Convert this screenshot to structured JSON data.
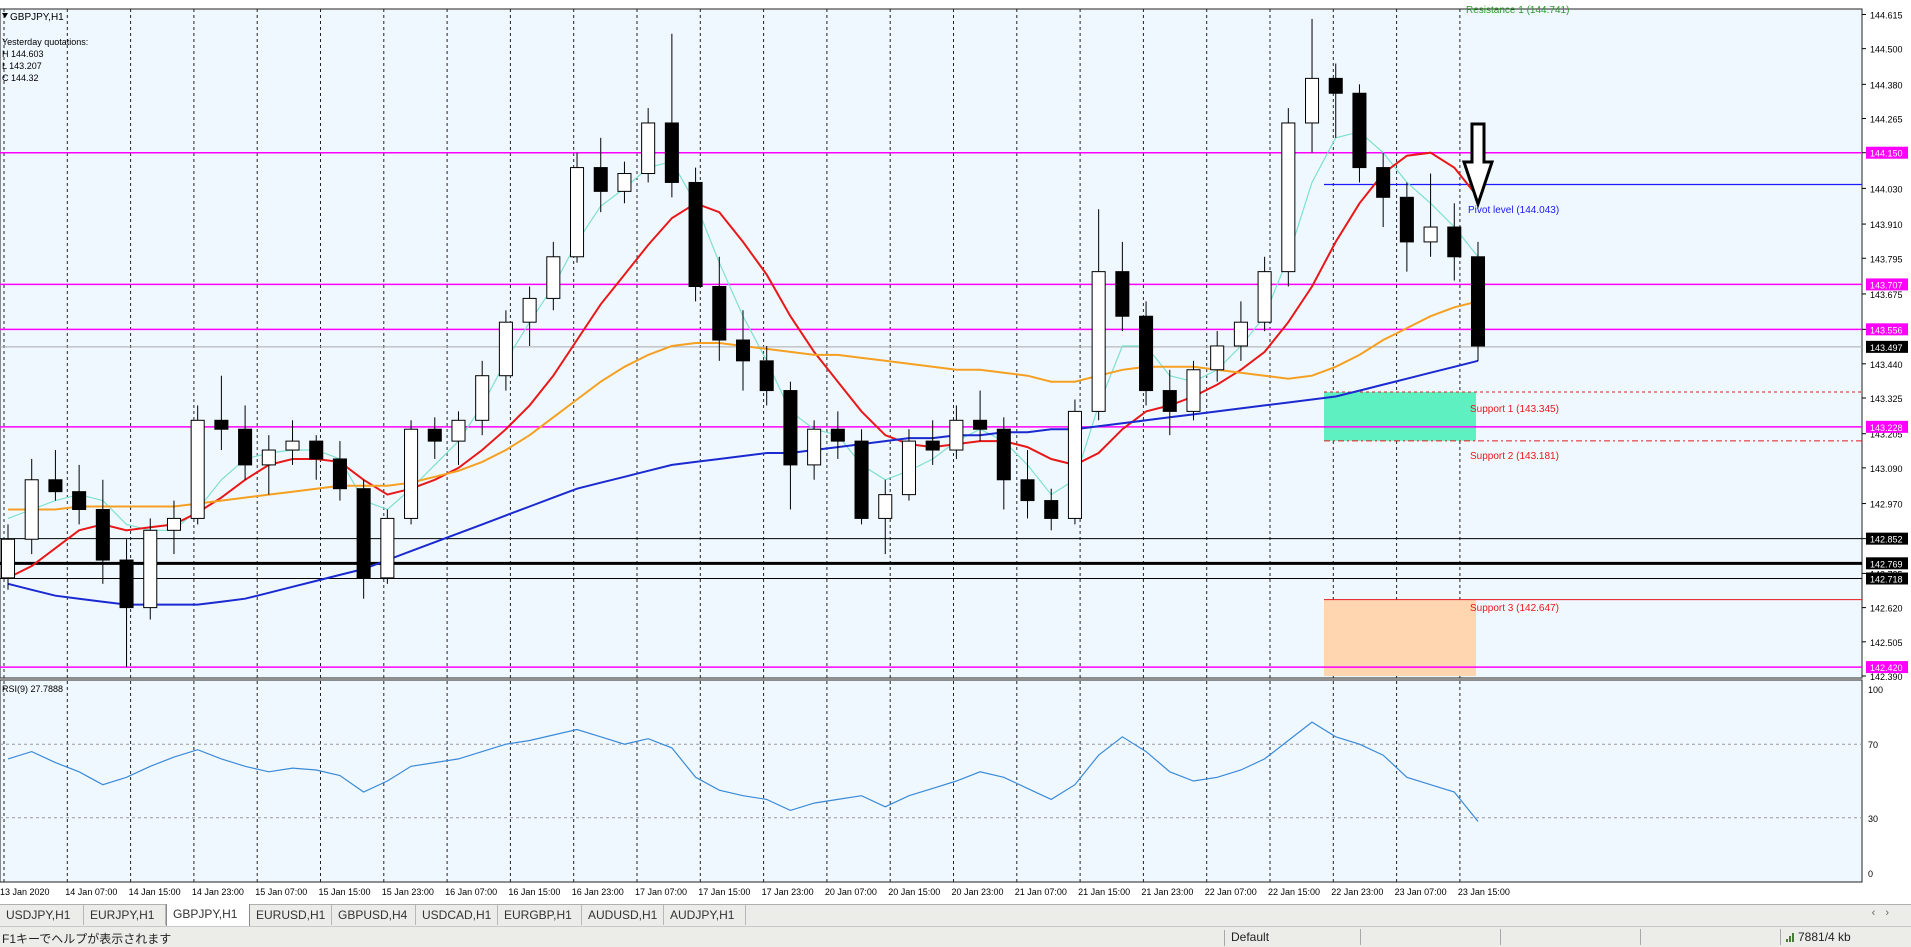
{
  "window": {
    "symbol_title": "GBPJPY,H1",
    "yesterday_label": "Yesterday quotations:",
    "yesterday_high": "H 144.603",
    "yesterday_low": "L 143.207",
    "yesterday_close": "C 144.32"
  },
  "price_scale": {
    "ticks": [
      "144.615",
      "144.500",
      "144.380",
      "144.265",
      "144.150",
      "144.030",
      "143.910",
      "143.795",
      "143.675",
      "143.556",
      "143.440",
      "143.325",
      "143.205",
      "143.090",
      "142.970",
      "142.852",
      "142.735",
      "142.620",
      "142.505",
      "142.390"
    ]
  },
  "price_badges": [
    {
      "text": "144.150",
      "price": 144.15,
      "kind": "magenta"
    },
    {
      "text": "143.707",
      "price": 143.707,
      "kind": "magenta"
    },
    {
      "text": "143.556",
      "price": 143.556,
      "kind": "magenta"
    },
    {
      "text": "143.497",
      "price": 143.497,
      "kind": "black"
    },
    {
      "text": "143.228",
      "price": 143.228,
      "kind": "magenta"
    },
    {
      "text": "142.852",
      "price": 142.852,
      "kind": "black"
    },
    {
      "text": "142.769",
      "price": 142.769,
      "kind": "black"
    },
    {
      "text": "142.718",
      "price": 142.718,
      "kind": "black"
    },
    {
      "text": "142.420",
      "price": 142.42,
      "kind": "magenta"
    }
  ],
  "levels": {
    "resistance1": "Resistance 1 (144.741)",
    "pivot": "Pivot level (144.043)",
    "support1": "Support 1 (143.345)",
    "support2": "Support 2 (143.181)",
    "support3": "Support 3 (142.647)"
  },
  "rsi": {
    "label": "RSI(9) 27.7888",
    "ticks": [
      "100",
      "70",
      "30",
      "0"
    ]
  },
  "time_axis": {
    "labels": [
      "13 Jan 2020",
      "14 Jan 07:00",
      "14 Jan 15:00",
      "14 Jan 23:00",
      "15 Jan 07:00",
      "15 Jan 15:00",
      "15 Jan 23:00",
      "16 Jan 07:00",
      "16 Jan 15:00",
      "16 Jan 23:00",
      "17 Jan 07:00",
      "17 Jan 15:00",
      "17 Jan 23:00",
      "20 Jan 07:00",
      "20 Jan 15:00",
      "20 Jan 23:00",
      "21 Jan 07:00",
      "21 Jan 15:00",
      "21 Jan 23:00",
      "22 Jan 07:00",
      "22 Jan 15:00",
      "22 Jan 23:00",
      "23 Jan 07:00",
      "23 Jan 15:00"
    ]
  },
  "tabs": [
    "USDJPY,H1",
    "EURJPY,H1",
    "GBPJPY,H1",
    "EURUSD,H1",
    "GBPUSD,H4",
    "USDCAD,H1",
    "EURGBP,H1",
    "AUDUSD,H1",
    "AUDJPY,H1"
  ],
  "active_tab": "GBPJPY,H1",
  "status": {
    "help": "F1キーでヘルプが表示されます",
    "profile": "Default",
    "traffic": "7881/4 kb"
  },
  "colors": {
    "background": "#f0f8ff",
    "magenta_line": "#ff00ff",
    "pivot": "#1a1aff",
    "ma_fast": "#7ee0d0",
    "ma_mid": "#e81818",
    "ma_slow": "#f5a020",
    "ma_long": "#1a2ad0",
    "support_zone": "#5ef0c0",
    "support3_zone": "#ffd6b0",
    "rsi_line": "#3a8ad8"
  },
  "chart_data": {
    "type": "candlestick",
    "symbol": "GBPJPY",
    "timeframe": "H1",
    "ylim": [
      142.39,
      144.63
    ],
    "candles": [
      [
        142.72,
        142.9,
        142.68,
        142.85
      ],
      [
        142.85,
        143.12,
        142.8,
        143.05
      ],
      [
        143.05,
        143.15,
        142.98,
        143.01
      ],
      [
        143.01,
        143.1,
        142.9,
        142.95
      ],
      [
        142.95,
        143.05,
        142.7,
        142.78
      ],
      [
        142.78,
        142.85,
        142.42,
        142.62
      ],
      [
        142.62,
        142.92,
        142.58,
        142.88
      ],
      [
        142.88,
        142.98,
        142.8,
        142.92
      ],
      [
        142.92,
        143.3,
        142.9,
        143.25
      ],
      [
        143.25,
        143.4,
        143.15,
        143.22
      ],
      [
        143.22,
        143.3,
        143.05,
        143.1
      ],
      [
        143.1,
        143.2,
        143.0,
        143.15
      ],
      [
        143.15,
        143.25,
        143.1,
        143.18
      ],
      [
        143.18,
        143.2,
        143.05,
        143.12
      ],
      [
        143.12,
        143.18,
        142.98,
        143.02
      ],
      [
        143.02,
        143.05,
        142.65,
        142.72
      ],
      [
        142.72,
        142.95,
        142.7,
        142.92
      ],
      [
        142.92,
        143.25,
        142.9,
        143.22
      ],
      [
        143.22,
        143.26,
        143.12,
        143.18
      ],
      [
        143.18,
        143.28,
        143.1,
        143.25
      ],
      [
        143.25,
        143.45,
        143.2,
        143.4
      ],
      [
        143.4,
        143.62,
        143.35,
        143.58
      ],
      [
        143.58,
        143.7,
        143.5,
        143.66
      ],
      [
        143.66,
        143.85,
        143.62,
        143.8
      ],
      [
        143.8,
        144.15,
        143.78,
        144.1
      ],
      [
        144.1,
        144.2,
        143.95,
        144.02
      ],
      [
        144.02,
        144.12,
        143.98,
        144.08
      ],
      [
        144.08,
        144.3,
        144.05,
        144.25
      ],
      [
        144.25,
        144.55,
        144.0,
        144.05
      ],
      [
        144.05,
        144.1,
        143.65,
        143.7
      ],
      [
        143.7,
        143.8,
        143.45,
        143.52
      ],
      [
        143.52,
        143.62,
        143.35,
        143.45
      ],
      [
        143.45,
        143.5,
        143.3,
        143.35
      ],
      [
        143.35,
        143.38,
        142.95,
        143.1
      ],
      [
        143.1,
        143.25,
        143.05,
        143.22
      ],
      [
        143.22,
        143.28,
        143.12,
        143.18
      ],
      [
        143.18,
        143.22,
        142.9,
        142.92
      ],
      [
        142.92,
        143.05,
        142.8,
        143.0
      ],
      [
        143.0,
        143.22,
        142.98,
        143.18
      ],
      [
        143.18,
        143.25,
        143.1,
        143.15
      ],
      [
        143.15,
        143.3,
        143.12,
        143.25
      ],
      [
        143.25,
        143.35,
        143.18,
        143.22
      ],
      [
        143.22,
        143.26,
        142.95,
        143.05
      ],
      [
        143.05,
        143.15,
        142.92,
        142.98
      ],
      [
        142.98,
        143.02,
        142.88,
        142.92
      ],
      [
        142.92,
        143.32,
        142.9,
        143.28
      ],
      [
        143.28,
        143.96,
        143.25,
        143.75
      ],
      [
        143.75,
        143.85,
        143.55,
        143.6
      ],
      [
        143.6,
        143.65,
        143.3,
        143.35
      ],
      [
        143.35,
        143.42,
        143.2,
        143.28
      ],
      [
        143.28,
        143.45,
        143.25,
        143.42
      ],
      [
        143.42,
        143.55,
        143.38,
        143.5
      ],
      [
        143.5,
        143.65,
        143.45,
        143.58
      ],
      [
        143.58,
        143.8,
        143.55,
        143.75
      ],
      [
        143.75,
        144.3,
        143.7,
        144.25
      ],
      [
        144.25,
        144.6,
        144.15,
        144.4
      ],
      [
        144.4,
        144.45,
        144.2,
        144.35
      ],
      [
        144.35,
        144.38,
        144.05,
        144.1
      ],
      [
        144.1,
        144.15,
        143.9,
        144.0
      ],
      [
        144.0,
        144.05,
        143.75,
        143.85
      ],
      [
        143.85,
        144.08,
        143.8,
        143.9
      ],
      [
        143.9,
        143.98,
        143.72,
        143.8
      ],
      [
        143.8,
        143.85,
        143.45,
        143.5
      ]
    ],
    "series": [
      {
        "name": "",
        "color": "#7ee0d0",
        "values": [
          142.92,
          142.95,
          142.98,
          143.0,
          142.98,
          142.9,
          142.88,
          142.88,
          142.95,
          143.05,
          143.12,
          143.14,
          143.15,
          143.15,
          143.12,
          142.98,
          142.95,
          143.02,
          143.1,
          143.18,
          143.3,
          143.45,
          143.58,
          143.7,
          143.85,
          143.97,
          144.03,
          144.1,
          144.12,
          143.98,
          143.78,
          143.6,
          143.45,
          143.28,
          143.22,
          143.2,
          143.1,
          143.05,
          143.08,
          143.12,
          143.18,
          143.22,
          143.18,
          143.1,
          143.0,
          143.05,
          143.3,
          143.5,
          143.5,
          143.4,
          143.38,
          143.42,
          143.5,
          143.6,
          143.8,
          144.05,
          144.2,
          144.22,
          144.15,
          144.05,
          143.98,
          143.9,
          143.8
        ]
      },
      {
        "name": "",
        "color": "#e81818",
        "values": [
          142.72,
          142.76,
          142.82,
          142.88,
          142.9,
          142.88,
          142.89,
          142.9,
          142.94,
          142.99,
          143.05,
          143.1,
          143.12,
          143.12,
          143.11,
          143.05,
          143.0,
          143.02,
          143.05,
          143.09,
          143.15,
          143.22,
          143.3,
          143.4,
          143.52,
          143.64,
          143.74,
          143.84,
          143.93,
          143.98,
          143.95,
          143.85,
          143.74,
          143.6,
          143.48,
          143.38,
          143.28,
          143.2,
          143.17,
          143.16,
          143.17,
          143.18,
          143.18,
          143.16,
          143.12,
          143.1,
          143.14,
          143.22,
          143.28,
          143.3,
          143.33,
          143.37,
          143.42,
          143.48,
          143.58,
          143.7,
          143.85,
          143.98,
          144.08,
          144.14,
          144.15,
          144.1,
          144.0
        ]
      },
      {
        "name": "",
        "color": "#f5a020",
        "values": [
          142.95,
          142.95,
          142.95,
          142.96,
          142.96,
          142.96,
          142.96,
          142.96,
          142.97,
          142.98,
          142.99,
          143.0,
          143.01,
          143.02,
          143.03,
          143.03,
          143.03,
          143.04,
          143.06,
          143.08,
          143.11,
          143.15,
          143.2,
          143.26,
          143.32,
          143.38,
          143.43,
          143.47,
          143.5,
          143.51,
          143.51,
          143.5,
          143.49,
          143.48,
          143.47,
          143.47,
          143.46,
          143.45,
          143.44,
          143.43,
          143.42,
          143.42,
          143.41,
          143.4,
          143.38,
          143.38,
          143.4,
          143.42,
          143.43,
          143.43,
          143.43,
          143.42,
          143.41,
          143.4,
          143.39,
          143.4,
          143.43,
          143.47,
          143.52,
          143.56,
          143.6,
          143.63,
          143.65
        ]
      },
      {
        "name": "",
        "color": "#1a2ad0",
        "values": [
          142.7,
          142.68,
          142.66,
          142.65,
          142.64,
          142.63,
          142.63,
          142.63,
          142.63,
          142.64,
          142.65,
          142.67,
          142.69,
          142.71,
          142.73,
          142.75,
          142.78,
          142.81,
          142.84,
          142.87,
          142.9,
          142.93,
          142.96,
          142.99,
          143.02,
          143.04,
          143.06,
          143.08,
          143.1,
          143.11,
          143.12,
          143.13,
          143.14,
          143.14,
          143.15,
          143.16,
          143.17,
          143.18,
          143.19,
          143.19,
          143.2,
          143.2,
          143.21,
          143.21,
          143.22,
          143.22,
          143.23,
          143.24,
          143.25,
          143.26,
          143.27,
          143.28,
          143.29,
          143.3,
          143.31,
          143.32,
          143.33,
          143.35,
          143.37,
          143.39,
          143.41,
          143.43,
          143.45
        ]
      }
    ],
    "rsi_values": [
      62,
      66,
      60,
      55,
      48,
      52,
      58,
      63,
      67,
      62,
      58,
      55,
      57,
      56,
      53,
      44,
      50,
      58,
      60,
      62,
      66,
      70,
      72,
      75,
      78,
      74,
      70,
      73,
      68,
      52,
      45,
      42,
      40,
      34,
      38,
      40,
      42,
      36,
      42,
      46,
      50,
      55,
      52,
      46,
      40,
      48,
      64,
      74,
      66,
      55,
      50,
      52,
      56,
      62,
      72,
      82,
      74,
      70,
      64,
      52,
      48,
      44,
      28
    ],
    "rsi_ylim": [
      0,
      100
    ]
  }
}
